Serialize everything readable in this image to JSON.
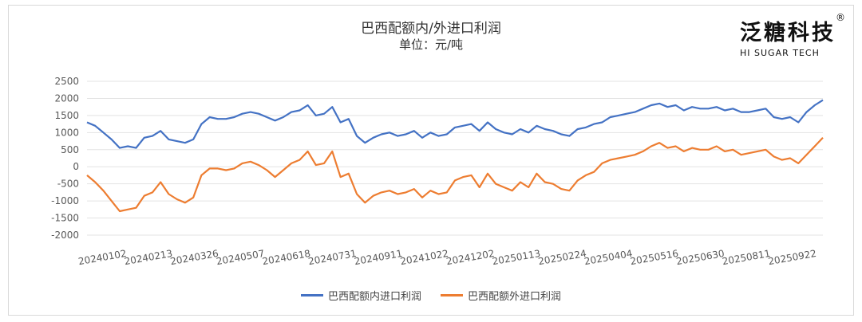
{
  "chart_data": {
    "type": "line",
    "title": "巴西配额内/外进口利润",
    "subtitle": "单位：元/吨",
    "xlabel": "",
    "ylabel": "",
    "ylim": [
      -2000,
      2500
    ],
    "yticks": [
      -2000,
      -1500,
      -1000,
      -500,
      0,
      500,
      1000,
      1500,
      2000,
      2500
    ],
    "grid": true,
    "legend_position": "bottom",
    "x_tick_labels": [
      "20240102",
      "20240213",
      "20240326",
      "20240507",
      "20240618",
      "20240731",
      "20240911",
      "20241022",
      "20241202",
      "20250113",
      "20250224",
      "20250404",
      "20250516",
      "20250630",
      "20250811",
      "20250922"
    ],
    "series": [
      {
        "name": "巴西配额内进口利润",
        "color": "#4472C4",
        "values": [
          1300,
          1200,
          1000,
          800,
          550,
          600,
          550,
          850,
          900,
          1050,
          800,
          750,
          700,
          800,
          1250,
          1450,
          1400,
          1400,
          1450,
          1550,
          1600,
          1550,
          1450,
          1350,
          1450,
          1600,
          1650,
          1800,
          1500,
          1550,
          1750,
          1300,
          1400,
          900,
          700,
          850,
          950,
          1000,
          900,
          950,
          1050,
          850,
          1000,
          900,
          950,
          1150,
          1200,
          1250,
          1050,
          1300,
          1100,
          1000,
          950,
          1100,
          1000,
          1200,
          1100,
          1050,
          950,
          900,
          1100,
          1150,
          1250,
          1300,
          1450,
          1500,
          1550,
          1600,
          1700,
          1800,
          1850,
          1750,
          1800,
          1650,
          1750,
          1700,
          1700,
          1750,
          1650,
          1700,
          1600,
          1600,
          1650,
          1700,
          1450,
          1400,
          1450,
          1300,
          1600,
          1800,
          1950
        ]
      },
      {
        "name": "巴西配额外进口利润",
        "color": "#ED7D31",
        "values": [
          -250,
          -450,
          -700,
          -1000,
          -1300,
          -1250,
          -1200,
          -850,
          -750,
          -450,
          -800,
          -950,
          -1050,
          -900,
          -250,
          -50,
          -50,
          -100,
          -50,
          100,
          150,
          50,
          -100,
          -300,
          -100,
          100,
          200,
          450,
          50,
          100,
          450,
          -300,
          -200,
          -800,
          -1050,
          -850,
          -750,
          -700,
          -800,
          -750,
          -650,
          -900,
          -700,
          -800,
          -750,
          -400,
          -300,
          -250,
          -600,
          -200,
          -500,
          -600,
          -700,
          -450,
          -600,
          -200,
          -450,
          -500,
          -650,
          -700,
          -400,
          -250,
          -150,
          100,
          200,
          250,
          300,
          350,
          450,
          600,
          700,
          550,
          600,
          450,
          550,
          500,
          500,
          600,
          450,
          500,
          350,
          400,
          450,
          500,
          300,
          200,
          250,
          100,
          350,
          600,
          850
        ]
      }
    ]
  }
}
